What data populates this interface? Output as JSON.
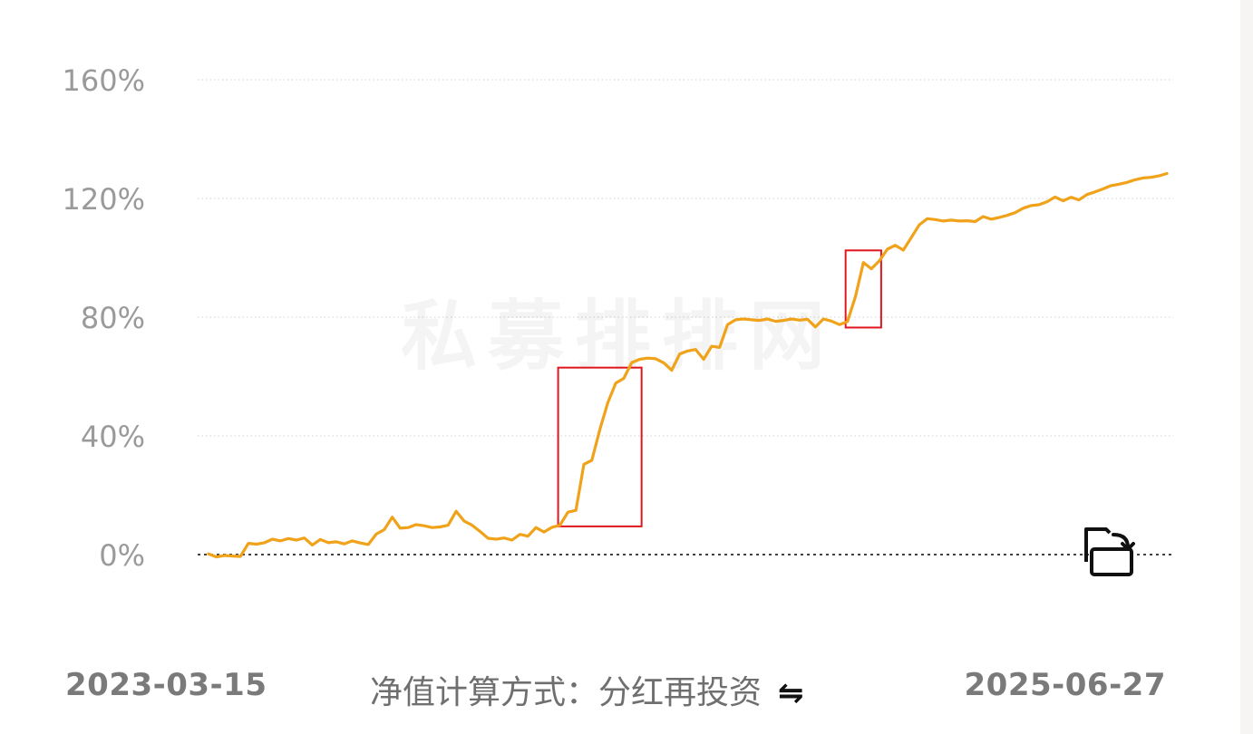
{
  "chart_data": {
    "type": "line",
    "title": "",
    "xlabel": "",
    "ylabel": "",
    "y_unit": "%",
    "ylim": [
      0,
      160
    ],
    "y_ticks": [
      {
        "value": 160,
        "label": "160%"
      },
      {
        "value": 120,
        "label": "120%"
      },
      {
        "value": 80,
        "label": "80%"
      },
      {
        "value": 40,
        "label": "40%"
      },
      {
        "value": 0,
        "label": "0%"
      }
    ],
    "grid": true,
    "x_range": [
      "2023-03-15",
      "2025-06-27"
    ],
    "line_color": "#f0a21a",
    "highlight_color": "#e0161e",
    "series": [
      {
        "values": [
          0.2,
          -0.8,
          -0.3,
          -0.5,
          -0.6,
          3.8,
          3.5,
          4.0,
          5.2,
          4.6,
          5.4,
          4.9,
          5.6,
          3.2,
          5.1,
          4.0,
          4.3,
          3.6,
          4.6,
          3.9,
          3.4,
          6.9,
          8.4,
          12.6,
          8.9,
          9.1,
          10.1,
          9.7,
          9.1,
          9.3,
          9.9,
          14.6,
          11.3,
          9.9,
          7.8,
          5.5,
          5.2,
          5.6,
          4.9,
          6.8,
          6.2,
          9.1,
          7.6,
          9.2,
          9.9,
          14.3,
          14.9,
          30.4,
          31.8,
          42.1,
          51.2,
          57.8,
          59.4,
          64.7,
          65.8,
          66.2,
          66.0,
          64.6,
          62.1,
          67.6,
          68.6,
          69.1,
          65.8,
          70.2,
          69.8,
          77.5,
          79.1,
          79.4,
          79.1,
          78.9,
          79.4,
          78.6,
          78.9,
          79.4,
          79.0,
          79.3,
          76.7,
          79.4,
          78.7,
          77.5,
          78.5,
          86.9,
          98.4,
          96.3,
          99.0,
          102.9,
          104.2,
          102.6,
          106.8,
          111.1,
          113.2,
          112.9,
          112.4,
          112.7,
          112.4,
          112.5,
          112.2,
          113.9,
          113.0,
          113.6,
          114.3,
          115.2,
          116.7,
          117.6,
          117.9,
          118.9,
          120.5,
          119.2,
          120.4,
          119.5,
          121.3,
          122.2,
          123.2,
          124.3,
          124.8,
          125.4,
          126.3,
          126.9,
          127.1,
          127.6,
          128.4
        ]
      }
    ],
    "highlights": [
      {
        "x_start_index": 44,
        "x_end_index": 54,
        "y_low": 9.5,
        "y_high": 63
      },
      {
        "x_start_index": 80,
        "x_end_index": 84,
        "y_low": 76.5,
        "y_high": 102.5
      }
    ],
    "x_labels": {
      "start": "2023-03-15",
      "end": "2025-06-27"
    }
  },
  "footer": {
    "start_date": "2023-03-15",
    "end_date": "2025-06-27",
    "calc_method": "净值计算方式：分红再投资",
    "swap_icon": "swap-arrows-icon",
    "swap_glyph": "⇋"
  },
  "watermark": {
    "text": "私募排排网"
  },
  "toolbar": {
    "rotate_icon": "rotate-screen-icon"
  }
}
